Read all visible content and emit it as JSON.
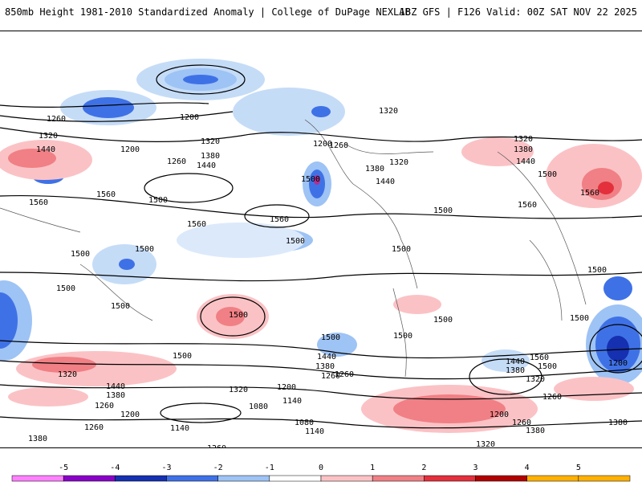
{
  "header": {
    "title": "850mb Height 1981-2010 Standardized Anomaly | College of DuPage NEXLAB",
    "run_info": "18Z GFS | F126 Valid: 00Z SAT NOV 22 2025"
  },
  "map": {
    "contour_labels": [
      "1260",
      "1320",
      "1440",
      "1200",
      "1380",
      "1500",
      "1560",
      "1140",
      "1080"
    ]
  },
  "colorbar": {
    "ticks": [
      "-5",
      "-4",
      "-3",
      "-2",
      "-1",
      "0",
      "1",
      "2",
      "3",
      "4",
      "5"
    ],
    "colors": {
      "-5": "#ff80ff",
      "-4": "#8a00c9",
      "-3": "#1530b0",
      "-2": "#3f71e6",
      "-1": "#9ec3f5",
      "0": "#ffffff",
      "1": "#fbc2c5",
      "2": "#f08085",
      "3": "#e3303c",
      "4": "#b00000",
      "5": "#ffb000"
    }
  }
}
